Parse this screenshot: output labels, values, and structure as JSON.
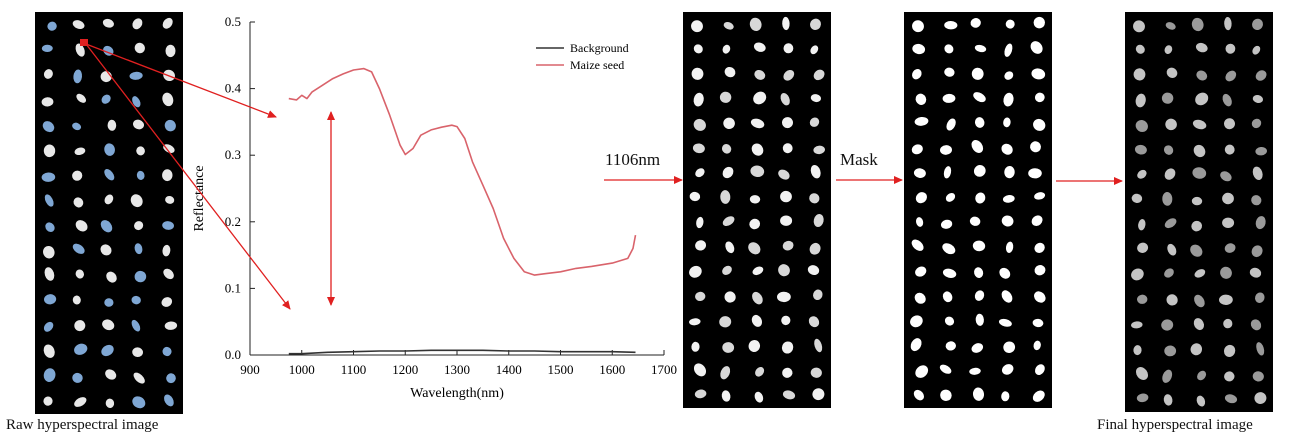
{
  "captions": {
    "raw": "Raw hyperspectral image",
    "final": "Final hyperspectral image"
  },
  "steps": {
    "wavelength": "1106nm",
    "mask": "Mask"
  },
  "colors": {
    "background_line": "#333333",
    "maize_line": "#d9636b",
    "arrow": "#e02020",
    "seed_blue": "#7fa7d4",
    "panel": "#000000"
  },
  "chart_data": {
    "type": "line",
    "xlabel": "Wavelength(nm)",
    "ylabel": "Reflectance",
    "xlim": [
      900,
      1700
    ],
    "ylim": [
      0,
      0.5
    ],
    "xticks": [
      900,
      1000,
      1100,
      1200,
      1300,
      1400,
      1500,
      1600,
      1700
    ],
    "yticks": [
      0.0,
      0.1,
      0.2,
      0.3,
      0.4,
      0.5
    ],
    "xtick_labels": [
      "900",
      "1000",
      "1100",
      "1200",
      "1300",
      "1400",
      "1500",
      "1600",
      "1700"
    ],
    "ytick_labels": [
      "0.0",
      "0.1",
      "0.2",
      "0.3",
      "0.4",
      "0.5"
    ],
    "legend_position": "top-right",
    "series": [
      {
        "name": "Background",
        "x": [
          975,
          1000,
          1050,
          1100,
          1150,
          1200,
          1250,
          1300,
          1350,
          1400,
          1450,
          1500,
          1550,
          1600,
          1645
        ],
        "y": [
          0.002,
          0.002,
          0.004,
          0.005,
          0.006,
          0.006,
          0.007,
          0.007,
          0.007,
          0.006,
          0.006,
          0.005,
          0.005,
          0.005,
          0.004
        ]
      },
      {
        "name": "Maize seed",
        "x": [
          975,
          990,
          1000,
          1010,
          1020,
          1040,
          1060,
          1080,
          1100,
          1120,
          1135,
          1150,
          1170,
          1190,
          1200,
          1215,
          1230,
          1250,
          1270,
          1290,
          1300,
          1315,
          1330,
          1350,
          1370,
          1390,
          1410,
          1430,
          1450,
          1470,
          1500,
          1530,
          1560,
          1600,
          1630,
          1640,
          1645
        ],
        "y": [
          0.385,
          0.383,
          0.39,
          0.385,
          0.395,
          0.405,
          0.415,
          0.422,
          0.428,
          0.43,
          0.425,
          0.4,
          0.36,
          0.315,
          0.301,
          0.31,
          0.33,
          0.338,
          0.342,
          0.345,
          0.343,
          0.325,
          0.29,
          0.255,
          0.22,
          0.175,
          0.145,
          0.125,
          0.12,
          0.122,
          0.125,
          0.13,
          0.133,
          0.138,
          0.145,
          0.16,
          0.18
        ]
      }
    ]
  }
}
